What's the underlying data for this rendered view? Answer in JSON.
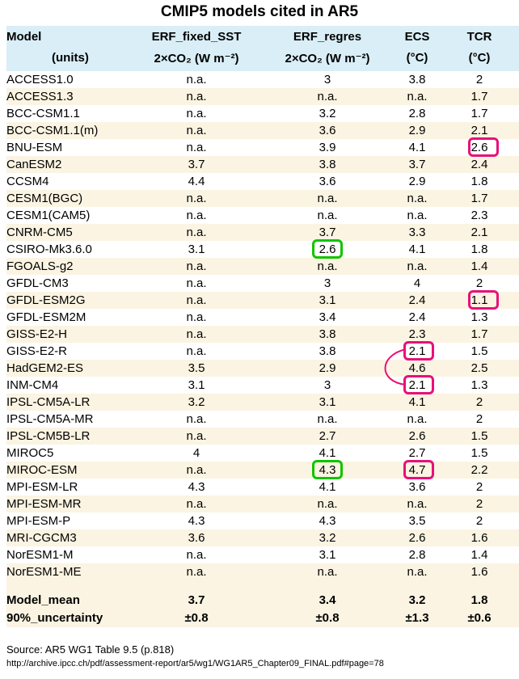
{
  "title": "CMIP5 models cited in AR5",
  "header": {
    "row1": [
      "Model",
      "ERF_fixed_SST",
      "ERF_regres",
      "ECS",
      "TCR"
    ],
    "row2": [
      "(units)",
      "2×CO₂ (W m⁻²)",
      "2×CO₂ (W m⁻²)",
      "(°C)",
      "(°C)"
    ]
  },
  "rows": [
    [
      "ACCESS1.0",
      "n.a.",
      "3",
      "3.8",
      "2"
    ],
    [
      "ACCESS1.3",
      "n.a.",
      "n.a.",
      "n.a.",
      "1.7"
    ],
    [
      "BCC-CSM1.1",
      "n.a.",
      "3.2",
      "2.8",
      "1.7"
    ],
    [
      "BCC-CSM1.1(m)",
      "n.a.",
      "3.6",
      "2.9",
      "2.1"
    ],
    [
      "BNU-ESM",
      "n.a.",
      "3.9",
      "4.1",
      "2.6"
    ],
    [
      "CanESM2",
      "3.7",
      "3.8",
      "3.7",
      "2.4"
    ],
    [
      "CCSM4",
      "4.4",
      "3.6",
      "2.9",
      "1.8"
    ],
    [
      "CESM1(BGC)",
      "n.a.",
      "n.a.",
      "n.a.",
      "1.7"
    ],
    [
      "CESM1(CAM5)",
      "n.a.",
      "n.a.",
      "n.a.",
      "2.3"
    ],
    [
      "CNRM-CM5",
      "n.a.",
      "3.7",
      "3.3",
      "2.1"
    ],
    [
      "CSIRO-Mk3.6.0",
      "3.1",
      "2.6",
      "4.1",
      "1.8"
    ],
    [
      "FGOALS-g2",
      "n.a.",
      "n.a.",
      "n.a.",
      "1.4"
    ],
    [
      "GFDL-CM3",
      "n.a.",
      "3",
      "4",
      "2"
    ],
    [
      "GFDL-ESM2G",
      "n.a.",
      "3.1",
      "2.4",
      "1.1"
    ],
    [
      "GFDL-ESM2M",
      "n.a.",
      "3.4",
      "2.4",
      "1.3"
    ],
    [
      "GISS-E2-H",
      "n.a.",
      "3.8",
      "2.3",
      "1.7"
    ],
    [
      "GISS-E2-R",
      "n.a.",
      "3.8",
      "2.1",
      "1.5"
    ],
    [
      "HadGEM2-ES",
      "3.5",
      "2.9",
      "4.6",
      "2.5"
    ],
    [
      "INM-CM4",
      "3.1",
      "3",
      "2.1",
      "1.3"
    ],
    [
      "IPSL-CM5A-LR",
      "3.2",
      "3.1",
      "4.1",
      "2"
    ],
    [
      "IPSL-CM5A-MR",
      "n.a.",
      "n.a.",
      "n.a.",
      "2"
    ],
    [
      "IPSL-CM5B-LR",
      "n.a.",
      "2.7",
      "2.6",
      "1.5"
    ],
    [
      "MIROC5",
      "4",
      "4.1",
      "2.7",
      "1.5"
    ],
    [
      "MIROC-ESM",
      "n.a.",
      "4.3",
      "4.7",
      "2.2"
    ],
    [
      "MPI-ESM-LR",
      "4.3",
      "4.1",
      "3.6",
      "2"
    ],
    [
      "MPI-ESM-MR",
      "n.a.",
      "n.a.",
      "n.a.",
      "2"
    ],
    [
      "MPI-ESM-P",
      "4.3",
      "4.3",
      "3.5",
      "2"
    ],
    [
      "MRI-CGCM3",
      "3.6",
      "3.2",
      "2.6",
      "1.6"
    ],
    [
      "NorESM1-M",
      "n.a.",
      "3.1",
      "2.8",
      "1.4"
    ],
    [
      "NorESM1-ME",
      "n.a.",
      "n.a.",
      "n.a.",
      "1.6"
    ]
  ],
  "summary": [
    [
      "Model_mean",
      "3.7",
      "3.4",
      "3.2",
      "1.8"
    ],
    [
      "90%_uncertainty",
      "±0.8",
      "±0.8",
      "±1.3",
      "±0.6"
    ]
  ],
  "source_line": "Source: AR5 WG1 Table 9.5 (p.818)",
  "url_line": "http://archive.ipcc.ch/pdf/assessment-report/ar5/wg1/WG1AR5_Chapter09_FINAL.pdf#page=78",
  "highlights": [
    {
      "row": 4,
      "col": 4,
      "color": "#e8107a"
    },
    {
      "row": 10,
      "col": 2,
      "color": "#11c400"
    },
    {
      "row": 13,
      "col": 4,
      "color": "#e8107a"
    },
    {
      "row": 16,
      "col": 3,
      "color": "#e8107a"
    },
    {
      "row": 18,
      "col": 3,
      "color": "#e8107a"
    },
    {
      "row": 23,
      "col": 2,
      "color": "#11c400"
    },
    {
      "row": 23,
      "col": 3,
      "color": "#e8107a"
    }
  ]
}
